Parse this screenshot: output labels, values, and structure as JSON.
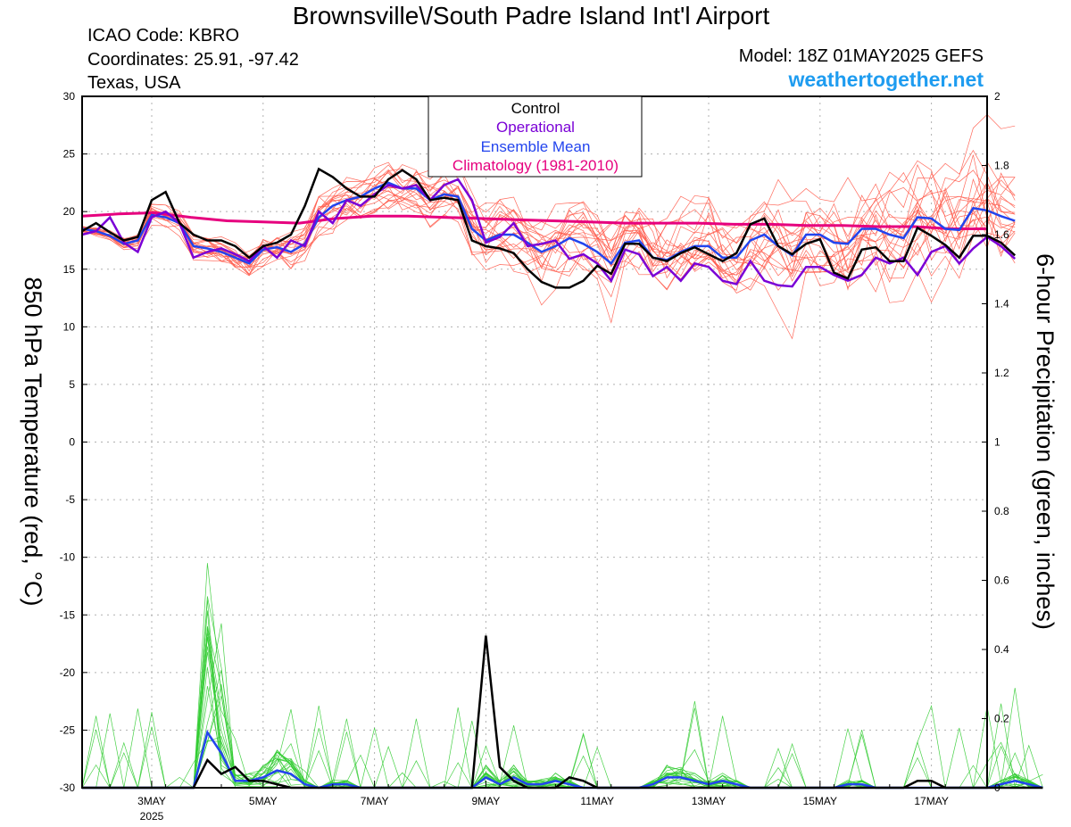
{
  "header": {
    "title": "Brownsville\\/South Padre Island Int'l Airport",
    "icao": "ICAO Code: KBRO",
    "coordinates": "Coordinates: 25.91, -97.42",
    "location": "Texas, USA",
    "model": "Model: 18Z 01MAY2025 GEFS",
    "site": "weathertogether.net"
  },
  "colors": {
    "control": "#000000",
    "operational": "#7a00d6",
    "ensemble_mean": "#2244ee",
    "climatology": "#e6007e",
    "member_temp": "#ff5a4a",
    "member_precip": "#33cc33",
    "site": "#1e9cf0"
  },
  "chart_data": {
    "type": "line",
    "xlabel": "",
    "ylabel": "850 hPa Temperature (red, °C)",
    "y2label": "6-hour Precipitation (green, inches)",
    "ylim": [
      -30,
      30
    ],
    "y2lim": [
      0,
      2
    ],
    "yticks": [
      30,
      25,
      20,
      15,
      10,
      5,
      0,
      -5,
      -10,
      -15,
      -20,
      -25,
      -30
    ],
    "y2ticks": [
      "2",
      "1.8",
      "1.6",
      "1.4",
      "1.2",
      "1",
      "0.8",
      "0.6",
      "0.4",
      "0.2",
      "0"
    ],
    "xlim_hours": [
      0,
      390
    ],
    "xticks": [
      {
        "label": "3MAY",
        "sub": "2025",
        "hour": 30
      },
      {
        "label": "5MAY",
        "sub": "",
        "hour": 78
      },
      {
        "label": "7MAY",
        "sub": "",
        "hour": 126
      },
      {
        "label": "9MAY",
        "sub": "",
        "hour": 174
      },
      {
        "label": "11MAY",
        "sub": "",
        "hour": 222
      },
      {
        "label": "13MAY",
        "sub": "",
        "hour": 270
      },
      {
        "label": "15MAY",
        "sub": "",
        "hour": 318
      },
      {
        "label": "17MAY",
        "sub": "",
        "hour": 366
      }
    ],
    "grid": true,
    "legend_position": "top-center",
    "legend": [
      "Control",
      "Operational",
      "Ensemble Mean",
      "Climatology (1981-2010)"
    ],
    "step_hours": 6,
    "temperature": {
      "control": [
        18.3,
        19.0,
        18.2,
        17.5,
        17.8,
        21.0,
        21.7,
        19.0,
        18.0,
        17.5,
        17.5,
        17.0,
        16.0,
        17.0,
        17.3,
        18.0,
        20.5,
        23.7,
        23.0,
        22.0,
        21.3,
        21.3,
        22.8,
        23.6,
        22.8,
        21.0,
        21.2,
        21.0,
        17.5,
        17.0,
        16.8,
        16.4,
        15.0,
        13.9,
        13.4,
        13.4,
        14.0,
        15.3,
        14.6,
        17.2,
        17.2,
        16.0,
        15.7,
        16.4,
        16.9,
        16.3,
        15.7,
        16.4,
        18.9,
        19.4,
        17.0,
        16.3,
        17.2,
        17.6,
        14.7,
        14.2,
        16.7,
        16.9,
        15.7,
        15.7,
        18.6,
        17.9,
        17.1,
        16.0,
        17.9,
        17.9,
        17.3,
        16.2
      ],
      "operational": [
        18.0,
        18.3,
        19.5,
        17.3,
        16.5,
        19.5,
        20.0,
        19.0,
        16.0,
        16.5,
        16.8,
        16.3,
        15.7,
        17.0,
        16.0,
        17.5,
        17.0,
        20.0,
        19.0,
        21.0,
        20.5,
        21.5,
        22.3,
        22.0,
        22.3,
        21.0,
        22.3,
        22.8,
        21.0,
        17.3,
        17.8,
        19.0,
        17.0,
        17.2,
        17.5,
        15.9,
        16.3,
        15.5,
        14.0,
        16.7,
        16.3,
        14.4,
        15.2,
        14.0,
        15.5,
        15.2,
        14.0,
        13.7,
        15.7,
        14.0,
        13.6,
        13.5,
        15.2,
        15.2,
        14.5,
        14.0,
        14.5,
        16.0,
        15.5,
        16.0,
        14.5,
        16.5,
        17.0,
        15.5,
        16.8,
        17.8,
        17.0,
        15.9
      ],
      "ensemble_mean": [
        18.5,
        18.3,
        17.9,
        17.2,
        17.5,
        19.7,
        19.5,
        19.0,
        17.0,
        16.8,
        16.5,
        16.0,
        15.5,
        16.7,
        16.9,
        16.5,
        17.2,
        19.5,
        20.5,
        21.0,
        21.3,
        22.0,
        22.5,
        22.0,
        22.0,
        21.0,
        21.5,
        21.3,
        18.5,
        17.5,
        18.0,
        18.0,
        17.3,
        16.5,
        17.0,
        17.7,
        17.2,
        16.5,
        15.5,
        17.3,
        17.5,
        16.0,
        15.8,
        16.5,
        17.0,
        17.0,
        16.0,
        16.0,
        17.5,
        18.0,
        17.0,
        16.2,
        18.0,
        18.0,
        17.3,
        17.2,
        18.5,
        18.5,
        18.0,
        17.7,
        19.5,
        19.4,
        18.5,
        18.4,
        20.3,
        20.1,
        19.6,
        19.2
      ],
      "climatology": [
        19.6,
        19.8,
        19.9,
        19.5,
        19.2,
        19.1,
        19.0,
        19.4,
        19.6,
        19.6,
        19.5,
        19.4,
        19.3,
        19.2,
        19.1,
        19.0,
        19.0,
        19.0,
        18.9,
        18.9,
        18.8,
        18.8,
        18.7,
        18.7,
        18.5,
        18.5
      ]
    },
    "precipitation": {
      "control": [
        0,
        0,
        0,
        0,
        0,
        0,
        0,
        0,
        0,
        0.08,
        0.04,
        0.06,
        0.02,
        0.02,
        0.01,
        0,
        0,
        0,
        0,
        0,
        0,
        0,
        0,
        0,
        0,
        0,
        0,
        0,
        0,
        0.44,
        0.06,
        0.02,
        0,
        0,
        0,
        0.03,
        0.02,
        0,
        0,
        0,
        0,
        0,
        0,
        0,
        0,
        0,
        0,
        0,
        0,
        0,
        0,
        0,
        0,
        0,
        0,
        0,
        0,
        0,
        0,
        0,
        0.02,
        0.02,
        0,
        0,
        0,
        0,
        0,
        0,
        0,
        0
      ],
      "ensemble_mean": [
        0,
        0,
        0,
        0,
        0,
        0,
        0,
        0,
        0,
        0.16,
        0.1,
        0.02,
        0.02,
        0.03,
        0.05,
        0.04,
        0.01,
        0,
        0.01,
        0.01,
        0,
        0,
        0,
        0,
        0,
        0,
        0,
        0,
        0,
        0.03,
        0.01,
        0.03,
        0.01,
        0.01,
        0.02,
        0.01,
        0,
        0,
        0,
        0,
        0,
        0.01,
        0.03,
        0.03,
        0.02,
        0.01,
        0.02,
        0.01,
        0,
        0,
        0,
        0,
        0,
        0,
        0,
        0.01,
        0.01,
        0,
        0,
        0,
        0,
        0,
        0,
        0,
        0,
        0,
        0.01,
        0.02,
        0.01,
        0
      ]
    }
  }
}
